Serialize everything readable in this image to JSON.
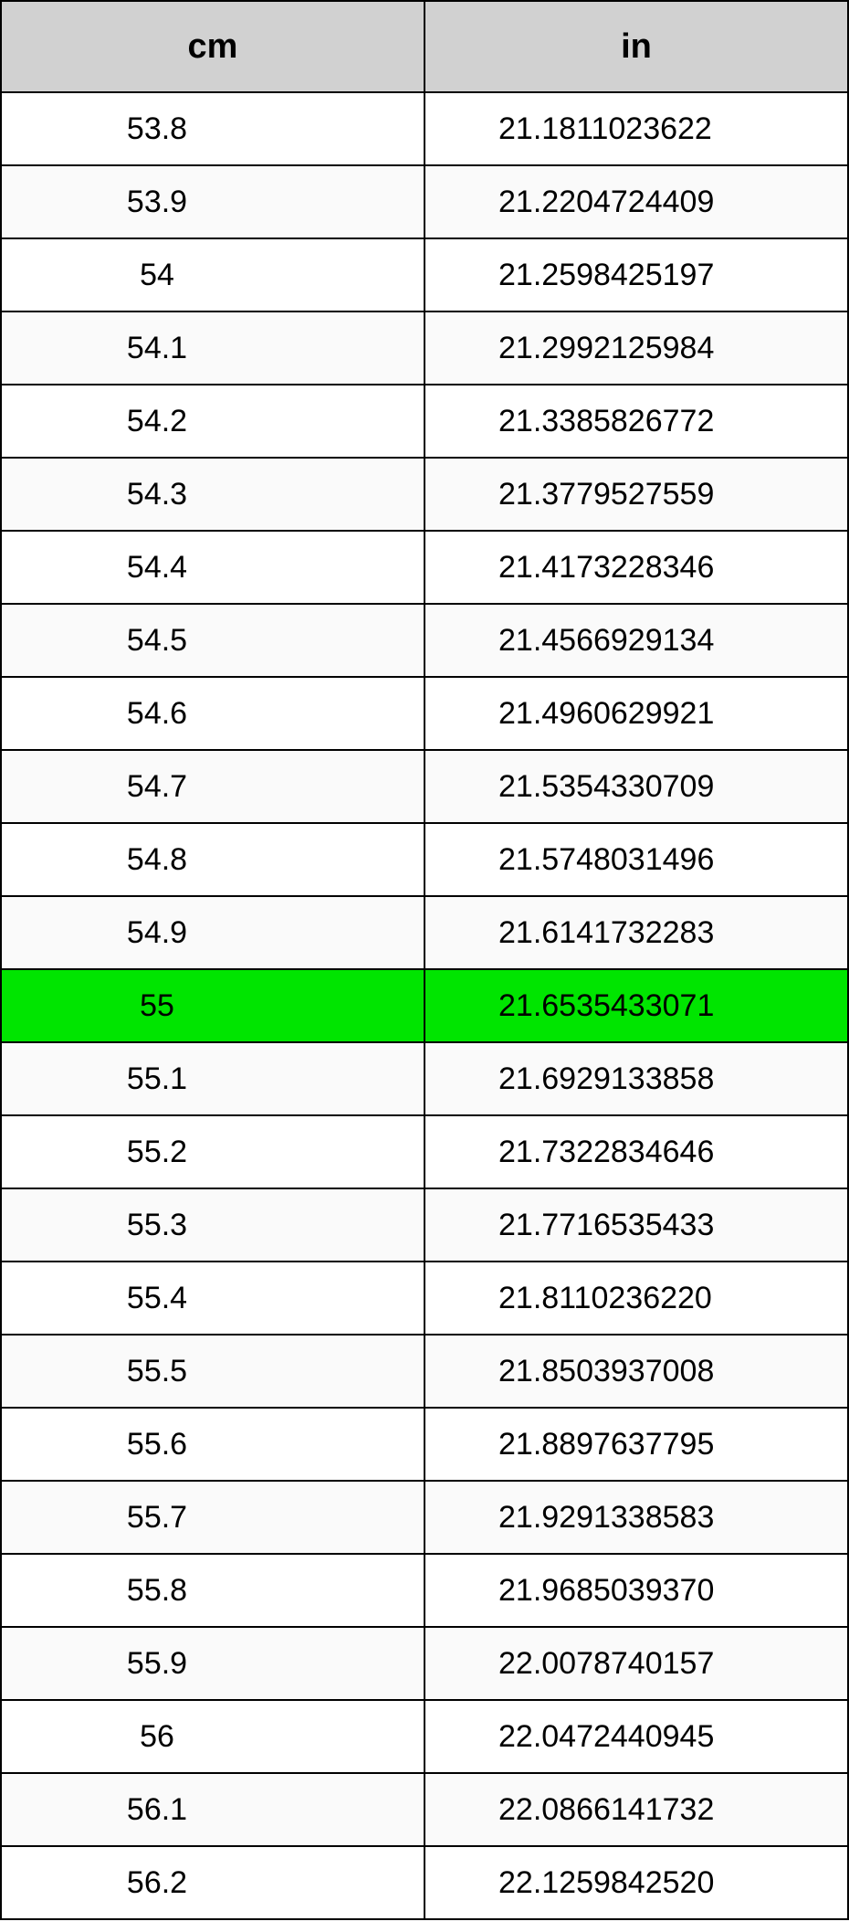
{
  "table": {
    "columns": [
      "cm",
      "in"
    ],
    "header_background": "#d1d1d1",
    "row_colors": {
      "even": "#ffffff",
      "odd": "#fafafa"
    },
    "highlight_color": "#00e500",
    "highlight_index": 12,
    "border_color": "#000000",
    "font_family": "Arial",
    "header_fontsize": 38,
    "cell_fontsize": 34,
    "rows": [
      {
        "cm": "53.8",
        "in": "21.1811023622"
      },
      {
        "cm": "53.9",
        "in": "21.2204724409"
      },
      {
        "cm": "54",
        "in": "21.2598425197"
      },
      {
        "cm": "54.1",
        "in": "21.2992125984"
      },
      {
        "cm": "54.2",
        "in": "21.3385826772"
      },
      {
        "cm": "54.3",
        "in": "21.3779527559"
      },
      {
        "cm": "54.4",
        "in": "21.4173228346"
      },
      {
        "cm": "54.5",
        "in": "21.4566929134"
      },
      {
        "cm": "54.6",
        "in": "21.4960629921"
      },
      {
        "cm": "54.7",
        "in": "21.5354330709"
      },
      {
        "cm": "54.8",
        "in": "21.5748031496"
      },
      {
        "cm": "54.9",
        "in": "21.6141732283"
      },
      {
        "cm": "55",
        "in": "21.6535433071"
      },
      {
        "cm": "55.1",
        "in": "21.6929133858"
      },
      {
        "cm": "55.2",
        "in": "21.7322834646"
      },
      {
        "cm": "55.3",
        "in": "21.7716535433"
      },
      {
        "cm": "55.4",
        "in": "21.8110236220"
      },
      {
        "cm": "55.5",
        "in": "21.8503937008"
      },
      {
        "cm": "55.6",
        "in": "21.8897637795"
      },
      {
        "cm": "55.7",
        "in": "21.9291338583"
      },
      {
        "cm": "55.8",
        "in": "21.9685039370"
      },
      {
        "cm": "55.9",
        "in": "22.0078740157"
      },
      {
        "cm": "56",
        "in": "22.0472440945"
      },
      {
        "cm": "56.1",
        "in": "22.0866141732"
      },
      {
        "cm": "56.2",
        "in": "22.1259842520"
      }
    ]
  }
}
